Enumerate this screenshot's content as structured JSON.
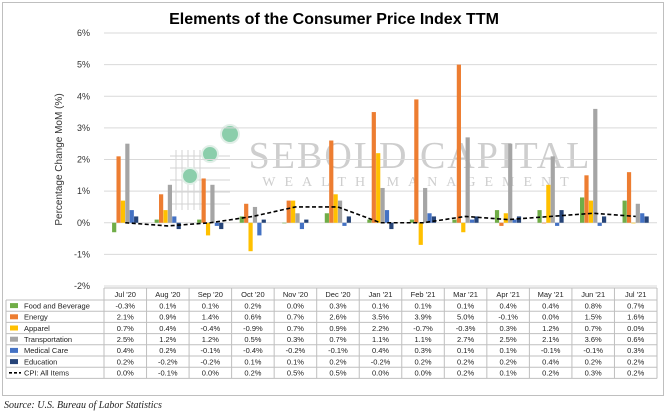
{
  "chart_data": {
    "type": "bar",
    "title": "Elements of the Consumer Price Index TTM",
    "ylabel": "Percentage Change MoM (%)",
    "xlabel": "",
    "ylim": [
      -2,
      6
    ],
    "yticks": [
      6,
      5,
      4,
      3,
      2,
      1,
      0,
      -1,
      -2
    ],
    "ytick_labels": [
      "6%",
      "5%",
      "4%",
      "3%",
      "2%",
      "1%",
      "0%",
      "-1%",
      "-2%"
    ],
    "grid": "horizontal",
    "legend": "data-table-below",
    "categories": [
      "Jul '20",
      "Aug '20",
      "Sep '20",
      "Oct '20",
      "Nov '20",
      "Dec '20",
      "Jan '21",
      "Feb '21",
      "Mar '21",
      "Apr '21",
      "May '21",
      "Jun '21",
      "Jul '21"
    ],
    "series": [
      {
        "name": "Food and Beverage",
        "kind": "bar",
        "color": "#70ad47",
        "values": [
          -0.3,
          0.1,
          0.1,
          0.2,
          0.0,
          0.3,
          0.1,
          0.1,
          0.1,
          0.4,
          0.4,
          0.8,
          0.7
        ],
        "labels": [
          "-0.3%",
          "0.1%",
          "0.1%",
          "0.2%",
          "0.0%",
          "0.3%",
          "0.1%",
          "0.1%",
          "0.1%",
          "0.4%",
          "0.4%",
          "0.8%",
          "0.7%"
        ]
      },
      {
        "name": "Energy",
        "kind": "bar",
        "color": "#ed7d31",
        "values": [
          2.1,
          0.9,
          1.4,
          0.6,
          0.7,
          2.6,
          3.5,
          3.9,
          5.0,
          -0.1,
          0.0,
          1.5,
          1.6
        ],
        "labels": [
          "2.1%",
          "0.9%",
          "1.4%",
          "0.6%",
          "0.7%",
          "2.6%",
          "3.5%",
          "3.9%",
          "5.0%",
          "-0.1%",
          "0.0%",
          "1.5%",
          "1.6%"
        ]
      },
      {
        "name": "Apparel",
        "kind": "bar",
        "color": "#ffc000",
        "values": [
          0.7,
          0.4,
          -0.4,
          -0.9,
          0.7,
          0.9,
          2.2,
          -0.7,
          -0.3,
          0.3,
          1.2,
          0.7,
          0.0
        ],
        "labels": [
          "0.7%",
          "0.4%",
          "-0.4%",
          "-0.9%",
          "0.7%",
          "0.9%",
          "2.2%",
          "-0.7%",
          "-0.3%",
          "0.3%",
          "1.2%",
          "0.7%",
          "0.0%"
        ]
      },
      {
        "name": "Transportation",
        "kind": "bar",
        "color": "#a5a5a5",
        "values": [
          2.5,
          1.2,
          1.2,
          0.5,
          0.3,
          0.7,
          1.1,
          1.1,
          2.7,
          2.5,
          2.1,
          3.6,
          0.6
        ],
        "labels": [
          "2.5%",
          "1.2%",
          "1.2%",
          "0.5%",
          "0.3%",
          "0.7%",
          "1.1%",
          "1.1%",
          "2.7%",
          "2.5%",
          "2.1%",
          "3.6%",
          "0.6%"
        ]
      },
      {
        "name": "Medical Care",
        "kind": "bar",
        "color": "#4472c4",
        "values": [
          0.4,
          0.2,
          -0.1,
          -0.4,
          -0.2,
          -0.1,
          0.4,
          0.3,
          0.1,
          0.1,
          -0.1,
          -0.1,
          0.3
        ],
        "labels": [
          "0.4%",
          "0.2%",
          "-0.1%",
          "-0.4%",
          "-0.2%",
          "-0.1%",
          "0.4%",
          "0.3%",
          "0.1%",
          "0.1%",
          "-0.1%",
          "-0.1%",
          "0.3%"
        ]
      },
      {
        "name": "Education",
        "kind": "bar",
        "color": "#264478",
        "values": [
          0.2,
          -0.2,
          -0.2,
          0.1,
          0.1,
          0.2,
          -0.2,
          0.2,
          0.2,
          0.2,
          0.4,
          0.2,
          0.2
        ],
        "labels": [
          "0.2%",
          "-0.2%",
          "-0.2%",
          "0.1%",
          "0.1%",
          "0.2%",
          "-0.2%",
          "0.2%",
          "0.2%",
          "0.2%",
          "0.4%",
          "0.2%",
          "0.2%"
        ]
      },
      {
        "name": "CPI: All Items",
        "kind": "line",
        "color": "#000000",
        "values": [
          0.0,
          -0.1,
          0.0,
          0.2,
          0.5,
          0.5,
          0.0,
          0.0,
          0.2,
          0.1,
          0.2,
          0.3,
          0.2
        ],
        "labels": [
          "0.0%",
          "-0.1%",
          "0.0%",
          "0.2%",
          "0.5%",
          "0.5%",
          "0.0%",
          "0.0%",
          "0.2%",
          "0.1%",
          "0.2%",
          "0.3%",
          "0.2%"
        ]
      }
    ],
    "watermark": {
      "line1": "SEBOLD CAPITAL",
      "line2": "WEALTH MANAGEMENT"
    }
  },
  "source": "Source: U.S. Bureau of Labor Statistics"
}
